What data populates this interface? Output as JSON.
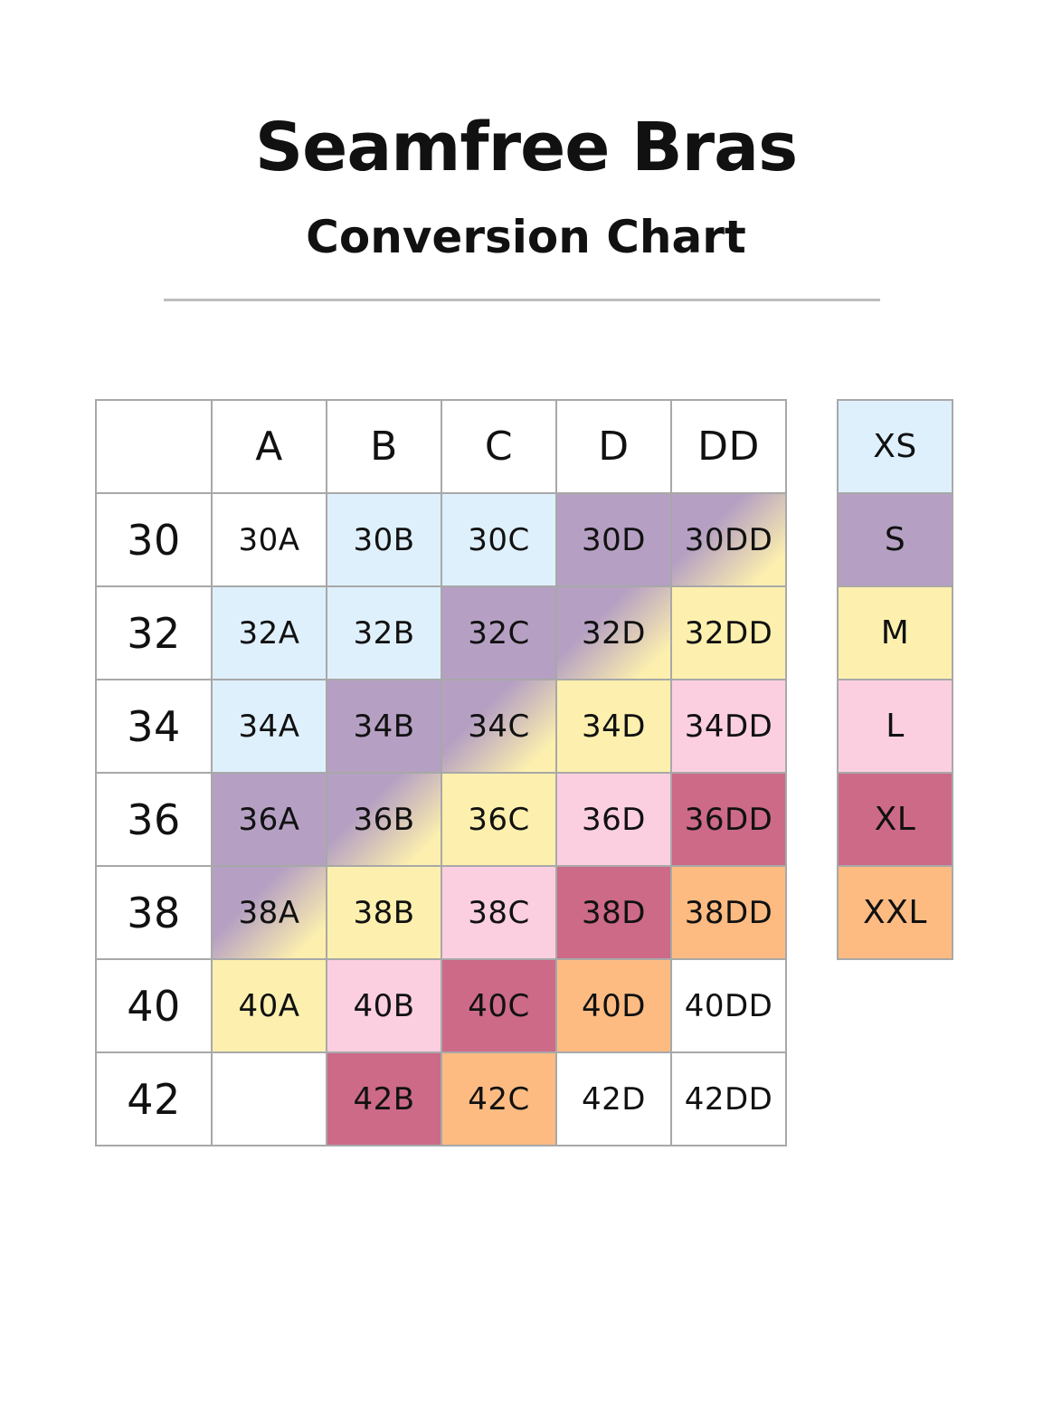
{
  "header": {
    "title": "Seamfree Bras",
    "subtitle": "Conversion Chart"
  },
  "colors": {
    "XS": "#dff0fd",
    "S": "#b5a0c3",
    "M": "#fdf0ae",
    "L": "#fccfe0",
    "XL": "#cc6a88",
    "XXL": "#fdbb82",
    "none": "#ffffff"
  },
  "table": {
    "cup_headers": [
      "A",
      "B",
      "C",
      "D",
      "DD"
    ],
    "rows": [
      {
        "band": "30",
        "cells": [
          {
            "label": "30A",
            "size": "none"
          },
          {
            "label": "30B",
            "size": "XS"
          },
          {
            "label": "30C",
            "size": "XS"
          },
          {
            "label": "30D",
            "size": "S"
          },
          {
            "label": "30DD",
            "size": "S",
            "blend": "M"
          }
        ]
      },
      {
        "band": "32",
        "cells": [
          {
            "label": "32A",
            "size": "XS"
          },
          {
            "label": "32B",
            "size": "XS"
          },
          {
            "label": "32C",
            "size": "S"
          },
          {
            "label": "32D",
            "size": "S",
            "blend": "M"
          },
          {
            "label": "32DD",
            "size": "M"
          }
        ]
      },
      {
        "band": "34",
        "cells": [
          {
            "label": "34A",
            "size": "XS"
          },
          {
            "label": "34B",
            "size": "S"
          },
          {
            "label": "34C",
            "size": "S",
            "blend": "M"
          },
          {
            "label": "34D",
            "size": "M"
          },
          {
            "label": "34DD",
            "size": "L"
          }
        ]
      },
      {
        "band": "36",
        "cells": [
          {
            "label": "36A",
            "size": "S"
          },
          {
            "label": "36B",
            "size": "S",
            "blend": "M"
          },
          {
            "label": "36C",
            "size": "M"
          },
          {
            "label": "36D",
            "size": "L"
          },
          {
            "label": "36DD",
            "size": "XL"
          }
        ]
      },
      {
        "band": "38",
        "cells": [
          {
            "label": "38A",
            "size": "S",
            "blend": "M"
          },
          {
            "label": "38B",
            "size": "M"
          },
          {
            "label": "38C",
            "size": "L"
          },
          {
            "label": "38D",
            "size": "XL"
          },
          {
            "label": "38DD",
            "size": "XXL"
          }
        ]
      },
      {
        "band": "40",
        "cells": [
          {
            "label": "40A",
            "size": "M"
          },
          {
            "label": "40B",
            "size": "L"
          },
          {
            "label": "40C",
            "size": "XL"
          },
          {
            "label": "40D",
            "size": "XXL"
          },
          {
            "label": "40DD",
            "size": "none"
          }
        ]
      },
      {
        "band": "42",
        "cells": [
          {
            "label": "",
            "size": "none"
          },
          {
            "label": "42B",
            "size": "XL"
          },
          {
            "label": "42C",
            "size": "XXL"
          },
          {
            "label": "42D",
            "size": "none"
          },
          {
            "label": "42DD",
            "size": "none"
          }
        ]
      }
    ]
  },
  "legend": [
    {
      "label": "XS",
      "size": "XS"
    },
    {
      "label": "S",
      "size": "S"
    },
    {
      "label": "M",
      "size": "M"
    },
    {
      "label": "L",
      "size": "L"
    },
    {
      "label": "XL",
      "size": "XL"
    },
    {
      "label": "XXL",
      "size": "XXL"
    }
  ]
}
